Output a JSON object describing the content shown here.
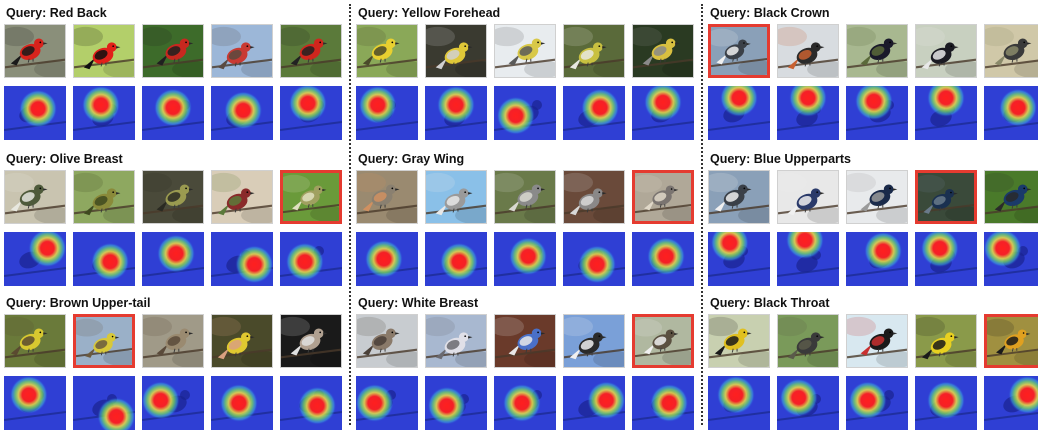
{
  "figure": {
    "columns": [
      {
        "queries": [
          {
            "title": "Query: Red Back",
            "selected_index": -1,
            "photos": [
              {
                "bg": "#8a8f7a",
                "bird": "#d8231c",
                "accent": "#1a1a1a"
              },
              {
                "bg": "#b3cf6a",
                "bird": "#e2201a",
                "accent": "#111111"
              },
              {
                "bg": "#3d6b2a",
                "bird": "#c8281f",
                "accent": "#202020"
              },
              {
                "bg": "#9cb7d8",
                "bird": "#c93a33",
                "accent": "#5a4a40"
              },
              {
                "bg": "#5b7a3a",
                "bird": "#d0261d",
                "accent": "#222222"
              }
            ],
            "heat": [
              {
                "hx": 0.55,
                "hy": 0.42
              },
              {
                "hx": 0.45,
                "hy": 0.35
              },
              {
                "hx": 0.5,
                "hy": 0.4
              },
              {
                "hx": 0.52,
                "hy": 0.45
              },
              {
                "hx": 0.45,
                "hy": 0.32
              }
            ]
          },
          {
            "title": "Query: Olive Breast",
            "selected_index": 4,
            "photos": [
              {
                "bg": "#c9c4b0",
                "bird": "#4e5a3a",
                "accent": "#e8e8e0"
              },
              {
                "bg": "#8ea860",
                "bird": "#8a8a3a",
                "accent": "#3f4a20"
              },
              {
                "bg": "#4a4a3a",
                "bird": "#9a9a50",
                "accent": "#2a2a22"
              },
              {
                "bg": "#d9cdb8",
                "bird": "#8a2a2a",
                "accent": "#5b7a3a"
              },
              {
                "bg": "#6a9a3a",
                "bird": "#a0a060",
                "accent": "#e0e0c0"
              }
            ],
            "heat": [
              {
                "hx": 0.7,
                "hy": 0.3
              },
              {
                "hx": 0.6,
                "hy": 0.55
              },
              {
                "hx": 0.55,
                "hy": 0.4
              },
              {
                "hx": 0.7,
                "hy": 0.6
              },
              {
                "hx": 0.4,
                "hy": 0.55
              }
            ]
          },
          {
            "title": "Query: Brown Upper-tail",
            "selected_index": 1,
            "photos": [
              {
                "bg": "#6a7a3a",
                "bird": "#d8c830",
                "accent": "#5a4a30"
              },
              {
                "bg": "#9ab0c8",
                "bird": "#d8c838",
                "accent": "#6a5a40"
              },
              {
                "bg": "#a09a88",
                "bird": "#9a8a70",
                "accent": "#5a4a3a"
              },
              {
                "bg": "#4a4a2a",
                "bird": "#e0c830",
                "accent": "#d8a080"
              },
              {
                "bg": "#1a1a1a",
                "bird": "#b0a090",
                "accent": "#e0e0e0"
              }
            ],
            "heat": [
              {
                "hx": 0.4,
                "hy": 0.35
              },
              {
                "hx": 0.7,
                "hy": 0.75
              },
              {
                "hx": 0.3,
                "hy": 0.45
              },
              {
                "hx": 0.45,
                "hy": 0.5
              },
              {
                "hx": 0.6,
                "hy": 0.55
              }
            ]
          }
        ]
      },
      {
        "queries": [
          {
            "title": "Query: Yellow Forehead",
            "selected_index": -1,
            "photos": [
              {
                "bg": "#8aa858",
                "bird": "#e8d030",
                "accent": "#4a4a2a"
              },
              {
                "bg": "#3a3a30",
                "bird": "#e0c838",
                "accent": "#d0d0d0"
              },
              {
                "bg": "#e8ecef",
                "bird": "#d8c848",
                "accent": "#5a5a5a"
              },
              {
                "bg": "#5a6a3a",
                "bird": "#c8c040",
                "accent": "#e8e8e0"
              },
              {
                "bg": "#2a3a22",
                "bird": "#d8c040",
                "accent": "#8a8a8a"
              }
            ],
            "heat": [
              {
                "hx": 0.35,
                "hy": 0.35
              },
              {
                "hx": 0.5,
                "hy": 0.35
              },
              {
                "hx": 0.35,
                "hy": 0.55
              },
              {
                "hx": 0.6,
                "hy": 0.4
              },
              {
                "hx": 0.5,
                "hy": 0.3
              }
            ]
          },
          {
            "title": "Query: Gray Wing",
            "selected_index": 4,
            "photos": [
              {
                "bg": "#9a8a70",
                "bird": "#8a8070",
                "accent": "#d09060"
              },
              {
                "bg": "#8ac0e8",
                "bird": "#9a9a9a",
                "accent": "#e8e8e8"
              },
              {
                "bg": "#6a7a4a",
                "bird": "#8a8a8a",
                "accent": "#d8d8d0"
              },
              {
                "bg": "#6a4a3a",
                "bird": "#8a8888",
                "accent": "#d8d8d8"
              },
              {
                "bg": "#b0a898",
                "bird": "#7a7470",
                "accent": "#e0d8c8"
              }
            ],
            "heat": [
              {
                "hx": 0.45,
                "hy": 0.5
              },
              {
                "hx": 0.55,
                "hy": 0.55
              },
              {
                "hx": 0.55,
                "hy": 0.45
              },
              {
                "hx": 0.55,
                "hy": 0.6
              },
              {
                "hx": 0.55,
                "hy": 0.45
              }
            ]
          },
          {
            "title": "Query: White Breast",
            "selected_index": 4,
            "photos": [
              {
                "bg": "#c8ccd0",
                "bird": "#8a7a6a",
                "accent": "#4a4038"
              },
              {
                "bg": "#a8b8d0",
                "bird": "#e0e0e8",
                "accent": "#6a6a70"
              },
              {
                "bg": "#6a3a2a",
                "bird": "#4a70c8",
                "accent": "#e8e8e8"
              },
              {
                "bg": "#7aa0d8",
                "bird": "#2a2a2a",
                "accent": "#f0f0f0"
              },
              {
                "bg": "#b0b8a0",
                "bird": "#5a5040",
                "accent": "#f0f0f0"
              }
            ],
            "heat": [
              {
                "hx": 0.3,
                "hy": 0.5
              },
              {
                "hx": 0.35,
                "hy": 0.55
              },
              {
                "hx": 0.45,
                "hy": 0.5
              },
              {
                "hx": 0.7,
                "hy": 0.45
              },
              {
                "hx": 0.6,
                "hy": 0.5
              }
            ]
          }
        ]
      },
      {
        "queries": [
          {
            "title": "Query: Black Crown",
            "selected_index": 0,
            "photos": [
              {
                "bg": "#8aa0b8",
                "bird": "#3a4048",
                "accent": "#f0f0f0"
              },
              {
                "bg": "#d8dce0",
                "bird": "#2a2a2a",
                "accent": "#c86030"
              },
              {
                "bg": "#a8b890",
                "bird": "#1a1a2a",
                "accent": "#5a6a3a"
              },
              {
                "bg": "#c8d0c0",
                "bird": "#1a1a22",
                "accent": "#e8e8e8"
              },
              {
                "bg": "#d0c8a8",
                "bird": "#3a3a3a",
                "accent": "#8a8a6a"
              }
            ],
            "heat": [
              {
                "hx": 0.5,
                "hy": 0.22
              },
              {
                "hx": 0.5,
                "hy": 0.22
              },
              {
                "hx": 0.45,
                "hy": 0.28
              },
              {
                "hx": 0.5,
                "hy": 0.22
              },
              {
                "hx": 0.55,
                "hy": 0.4
              }
            ]
          },
          {
            "title": "Query: Blue Upperparts",
            "selected_index": 3,
            "photos": [
              {
                "bg": "#8aa0b8",
                "bird": "#3a4048",
                "accent": "#f0f0f0"
              },
              {
                "bg": "#e8e8e8",
                "bird": "#2a3a6a",
                "accent": "#f0f0f0"
              },
              {
                "bg": "#e8eaec",
                "bird": "#1a2a4a",
                "accent": "#9a9a9a"
              },
              {
                "bg": "#3a4a3a",
                "bird": "#1a3050",
                "accent": "#6a7a8a"
              },
              {
                "bg": "#4a7a2a",
                "bird": "#1a3a6a",
                "accent": "#2a2a2a"
              }
            ],
            "heat": [
              {
                "hx": 0.35,
                "hy": 0.2
              },
              {
                "hx": 0.45,
                "hy": 0.15
              },
              {
                "hx": 0.6,
                "hy": 0.35
              },
              {
                "hx": 0.4,
                "hy": 0.3
              },
              {
                "hx": 0.3,
                "hy": 0.3
              }
            ]
          },
          {
            "title": "Query: Black Throat",
            "selected_index": 4,
            "photos": [
              {
                "bg": "#c8d0b0",
                "bird": "#e0c020",
                "accent": "#1a1a1a"
              },
              {
                "bg": "#7a9a5a",
                "bird": "#3a3a3a",
                "accent": "#5a5a4a"
              },
              {
                "bg": "#d8e8f0",
                "bird": "#1a1a1a",
                "accent": "#c83030"
              },
              {
                "bg": "#8a9a4a",
                "bird": "#e8d020",
                "accent": "#1a1a1a"
              },
              {
                "bg": "#a09040",
                "bird": "#e0a020",
                "accent": "#1a1a1a"
              }
            ],
            "heat": [
              {
                "hx": 0.45,
                "hy": 0.35
              },
              {
                "hx": 0.35,
                "hy": 0.4
              },
              {
                "hx": 0.35,
                "hy": 0.45
              },
              {
                "hx": 0.5,
                "hy": 0.45
              },
              {
                "hx": 0.7,
                "hy": 0.35
              }
            ]
          }
        ]
      }
    ]
  },
  "colors": {
    "selection_border": "#e53b30",
    "heatmap_base": "#2f3fd4",
    "heatmap_ring_outer": "#3fbfe0",
    "heatmap_ring_mid": "#7de85a",
    "heatmap_ring_inner": "#f0e040",
    "heatmap_core": "#ff1f1f"
  }
}
